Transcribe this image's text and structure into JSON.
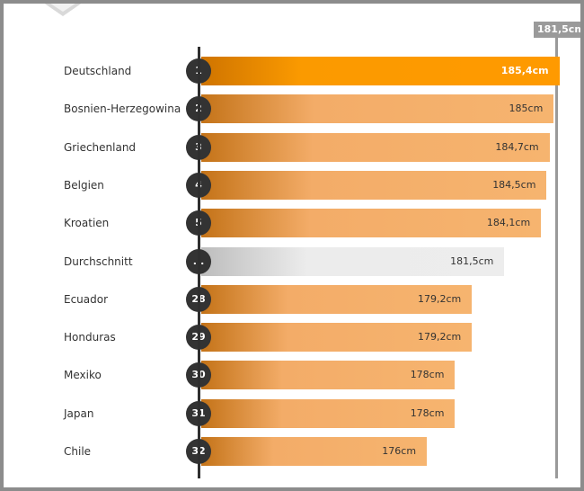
{
  "chart_data": {
    "type": "bar",
    "orientation": "horizontal",
    "unit": "cm",
    "xlim": [
      160,
      186
    ],
    "average_marker": {
      "label": "181,5cm",
      "value": 181.5
    },
    "highlight_color": "#ff9a00",
    "bar_color": "#f6b46f",
    "average_bar_color": "#ededed",
    "rows": [
      {
        "rank": "1",
        "country": "Deutschland",
        "value": 185.4,
        "label": "185,4cm",
        "style": "highlight"
      },
      {
        "rank": "2",
        "country": "Bosnien-Herzegowina",
        "value": 185.0,
        "label": "185cm",
        "style": "normal"
      },
      {
        "rank": "3",
        "country": "Griechenland",
        "value": 184.7,
        "label": "184,7cm",
        "style": "normal"
      },
      {
        "rank": "4",
        "country": "Belgien",
        "value": 184.5,
        "label": "184,5cm",
        "style": "normal"
      },
      {
        "rank": "5",
        "country": "Kroatien",
        "value": 184.1,
        "label": "184,1cm",
        "style": "normal"
      },
      {
        "rank": "...",
        "country": "Durchschnitt",
        "value": 181.5,
        "label": "181,5cm",
        "style": "avg"
      },
      {
        "rank": "28",
        "country": "Ecuador",
        "value": 179.2,
        "label": "179,2cm",
        "style": "normal"
      },
      {
        "rank": "29",
        "country": "Honduras",
        "value": 179.2,
        "label": "179,2cm",
        "style": "normal"
      },
      {
        "rank": "30",
        "country": "Mexiko",
        "value": 178.0,
        "label": "178cm",
        "style": "normal"
      },
      {
        "rank": "31",
        "country": "Japan",
        "value": 178.0,
        "label": "178cm",
        "style": "normal"
      },
      {
        "rank": "32",
        "country": "Chile",
        "value": 176.0,
        "label": "176cm",
        "style": "normal"
      }
    ]
  }
}
